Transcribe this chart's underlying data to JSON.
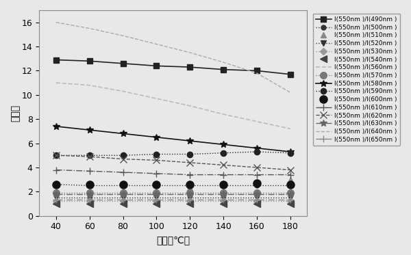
{
  "x": [
    40,
    60,
    80,
    100,
    120,
    140,
    160,
    180
  ],
  "series": [
    {
      "label": "I(550nm )/I(490nm )",
      "marker": "s",
      "linestyle": "-",
      "color": "#222222",
      "markersize": 6,
      "linewidth": 1.2,
      "values": [
        12.9,
        12.8,
        12.6,
        12.4,
        12.3,
        12.1,
        12.0,
        11.7
      ]
    },
    {
      "label": "I(550nm )/I(500nm )",
      "marker": "o",
      "linestyle": ":",
      "color": "#333333",
      "markersize": 5,
      "linewidth": 1.0,
      "values": [
        2.6,
        2.5,
        2.5,
        2.5,
        2.5,
        2.5,
        2.5,
        2.5
      ]
    },
    {
      "label": "I(550nm )/I(510nm )",
      "marker": "^",
      "linestyle": "",
      "color": "#888888",
      "markersize": 6,
      "linewidth": 1.0,
      "values": [
        1.3,
        1.5,
        1.8,
        2.0,
        2.3,
        2.6,
        2.8,
        3.0
      ]
    },
    {
      "label": "I(550nm )/I(520nm )",
      "marker": "v",
      "linestyle": ":",
      "color": "#333333",
      "markersize": 6,
      "linewidth": 1.0,
      "values": [
        1.5,
        1.5,
        1.5,
        1.5,
        1.5,
        1.5,
        1.5,
        1.5
      ]
    },
    {
      "label": "I(550nm )/I(530nm )",
      "marker": "D",
      "linestyle": ":",
      "color": "#999999",
      "markersize": 5,
      "linewidth": 1.0,
      "values": [
        1.2,
        1.2,
        1.2,
        1.2,
        1.2,
        1.2,
        1.2,
        1.2
      ]
    },
    {
      "label": "I(550nm )/I(540nm )",
      "marker": "<",
      "linestyle": "",
      "color": "#444444",
      "markersize": 7,
      "linewidth": 1.0,
      "values": [
        1.0,
        1.0,
        1.0,
        1.0,
        1.0,
        1.0,
        1.0,
        1.0
      ]
    },
    {
      "label": "I(550nm )/I(560nm )",
      "marker": "None",
      "linestyle": "--",
      "color": "#bbbbbb",
      "markersize": 5,
      "linewidth": 1.2,
      "values": [
        11.0,
        10.8,
        10.3,
        9.7,
        9.1,
        8.4,
        7.8,
        7.2
      ]
    },
    {
      "label": "I(550nm )/I(570nm )",
      "marker": "o",
      "linestyle": ":",
      "color": "#777777",
      "markersize": 7,
      "linewidth": 1.0,
      "values": [
        1.9,
        1.9,
        1.9,
        1.9,
        1.9,
        1.9,
        1.9,
        1.9
      ]
    },
    {
      "label": "I(550nm )/I(580nm )",
      "marker": "*",
      "linestyle": "-",
      "color": "#111111",
      "markersize": 7,
      "linewidth": 1.2,
      "values": [
        7.4,
        7.1,
        6.8,
        6.5,
        6.2,
        5.9,
        5.6,
        5.3
      ]
    },
    {
      "label": "I(550nm )/I(590nm )",
      "marker": "o",
      "linestyle": ":",
      "color": "#222222",
      "markersize": 6,
      "linewidth": 1.0,
      "values": [
        5.0,
        5.0,
        5.0,
        5.1,
        5.1,
        5.2,
        5.3,
        5.2
      ]
    },
    {
      "label": "I(550nm )/I(600nm )",
      "marker": "o",
      "linestyle": "",
      "color": "#111111",
      "markersize": 8,
      "linewidth": 1.0,
      "values": [
        2.6,
        2.6,
        2.6,
        2.6,
        2.6,
        2.6,
        2.7,
        2.6
      ]
    },
    {
      "label": "I(550nm )/I(610nm )",
      "marker": "+",
      "linestyle": "-.",
      "color": "#555555",
      "markersize": 7,
      "linewidth": 1.0,
      "values": [
        3.8,
        3.7,
        3.6,
        3.5,
        3.4,
        3.4,
        3.4,
        3.4
      ]
    },
    {
      "label": "I(550nm )/I(620nm )",
      "marker": "x",
      "linestyle": "--",
      "color": "#555555",
      "markersize": 7,
      "linewidth": 1.0,
      "values": [
        5.0,
        4.9,
        4.7,
        4.6,
        4.4,
        4.2,
        4.0,
        3.8
      ]
    },
    {
      "label": "I(550nm )/I(630nm )",
      "marker": "*",
      "linestyle": "-.",
      "color": "#666666",
      "markersize": 7,
      "linewidth": 1.0,
      "values": [
        1.8,
        1.8,
        1.8,
        1.8,
        1.8,
        1.8,
        1.8,
        1.8
      ]
    },
    {
      "label": "I(550nm )/I(640nm )",
      "marker": "None",
      "linestyle": "--",
      "color": "#aaaaaa",
      "markersize": 5,
      "linewidth": 1.0,
      "values": [
        16.0,
        15.5,
        14.9,
        14.2,
        13.5,
        12.7,
        11.8,
        10.2
      ]
    },
    {
      "label": "I(550nm )/I(650nm )",
      "marker": "+",
      "linestyle": "-.",
      "color": "#888888",
      "markersize": 7,
      "linewidth": 1.0,
      "values": [
        1.35,
        1.35,
        1.35,
        1.35,
        1.35,
        1.35,
        1.35,
        1.35
      ]
    }
  ],
  "xlabel": "温度（℃）",
  "ylabel": "强度比",
  "xlim": [
    30,
    190
  ],
  "ylim": [
    0,
    17
  ],
  "xticks": [
    40,
    60,
    80,
    100,
    120,
    140,
    160,
    180
  ],
  "yticks": [
    0,
    2,
    4,
    6,
    8,
    10,
    12,
    14,
    16
  ],
  "background_color": "#e8e8e8",
  "plot_bg_color": "#e8e8e8",
  "grid": false
}
